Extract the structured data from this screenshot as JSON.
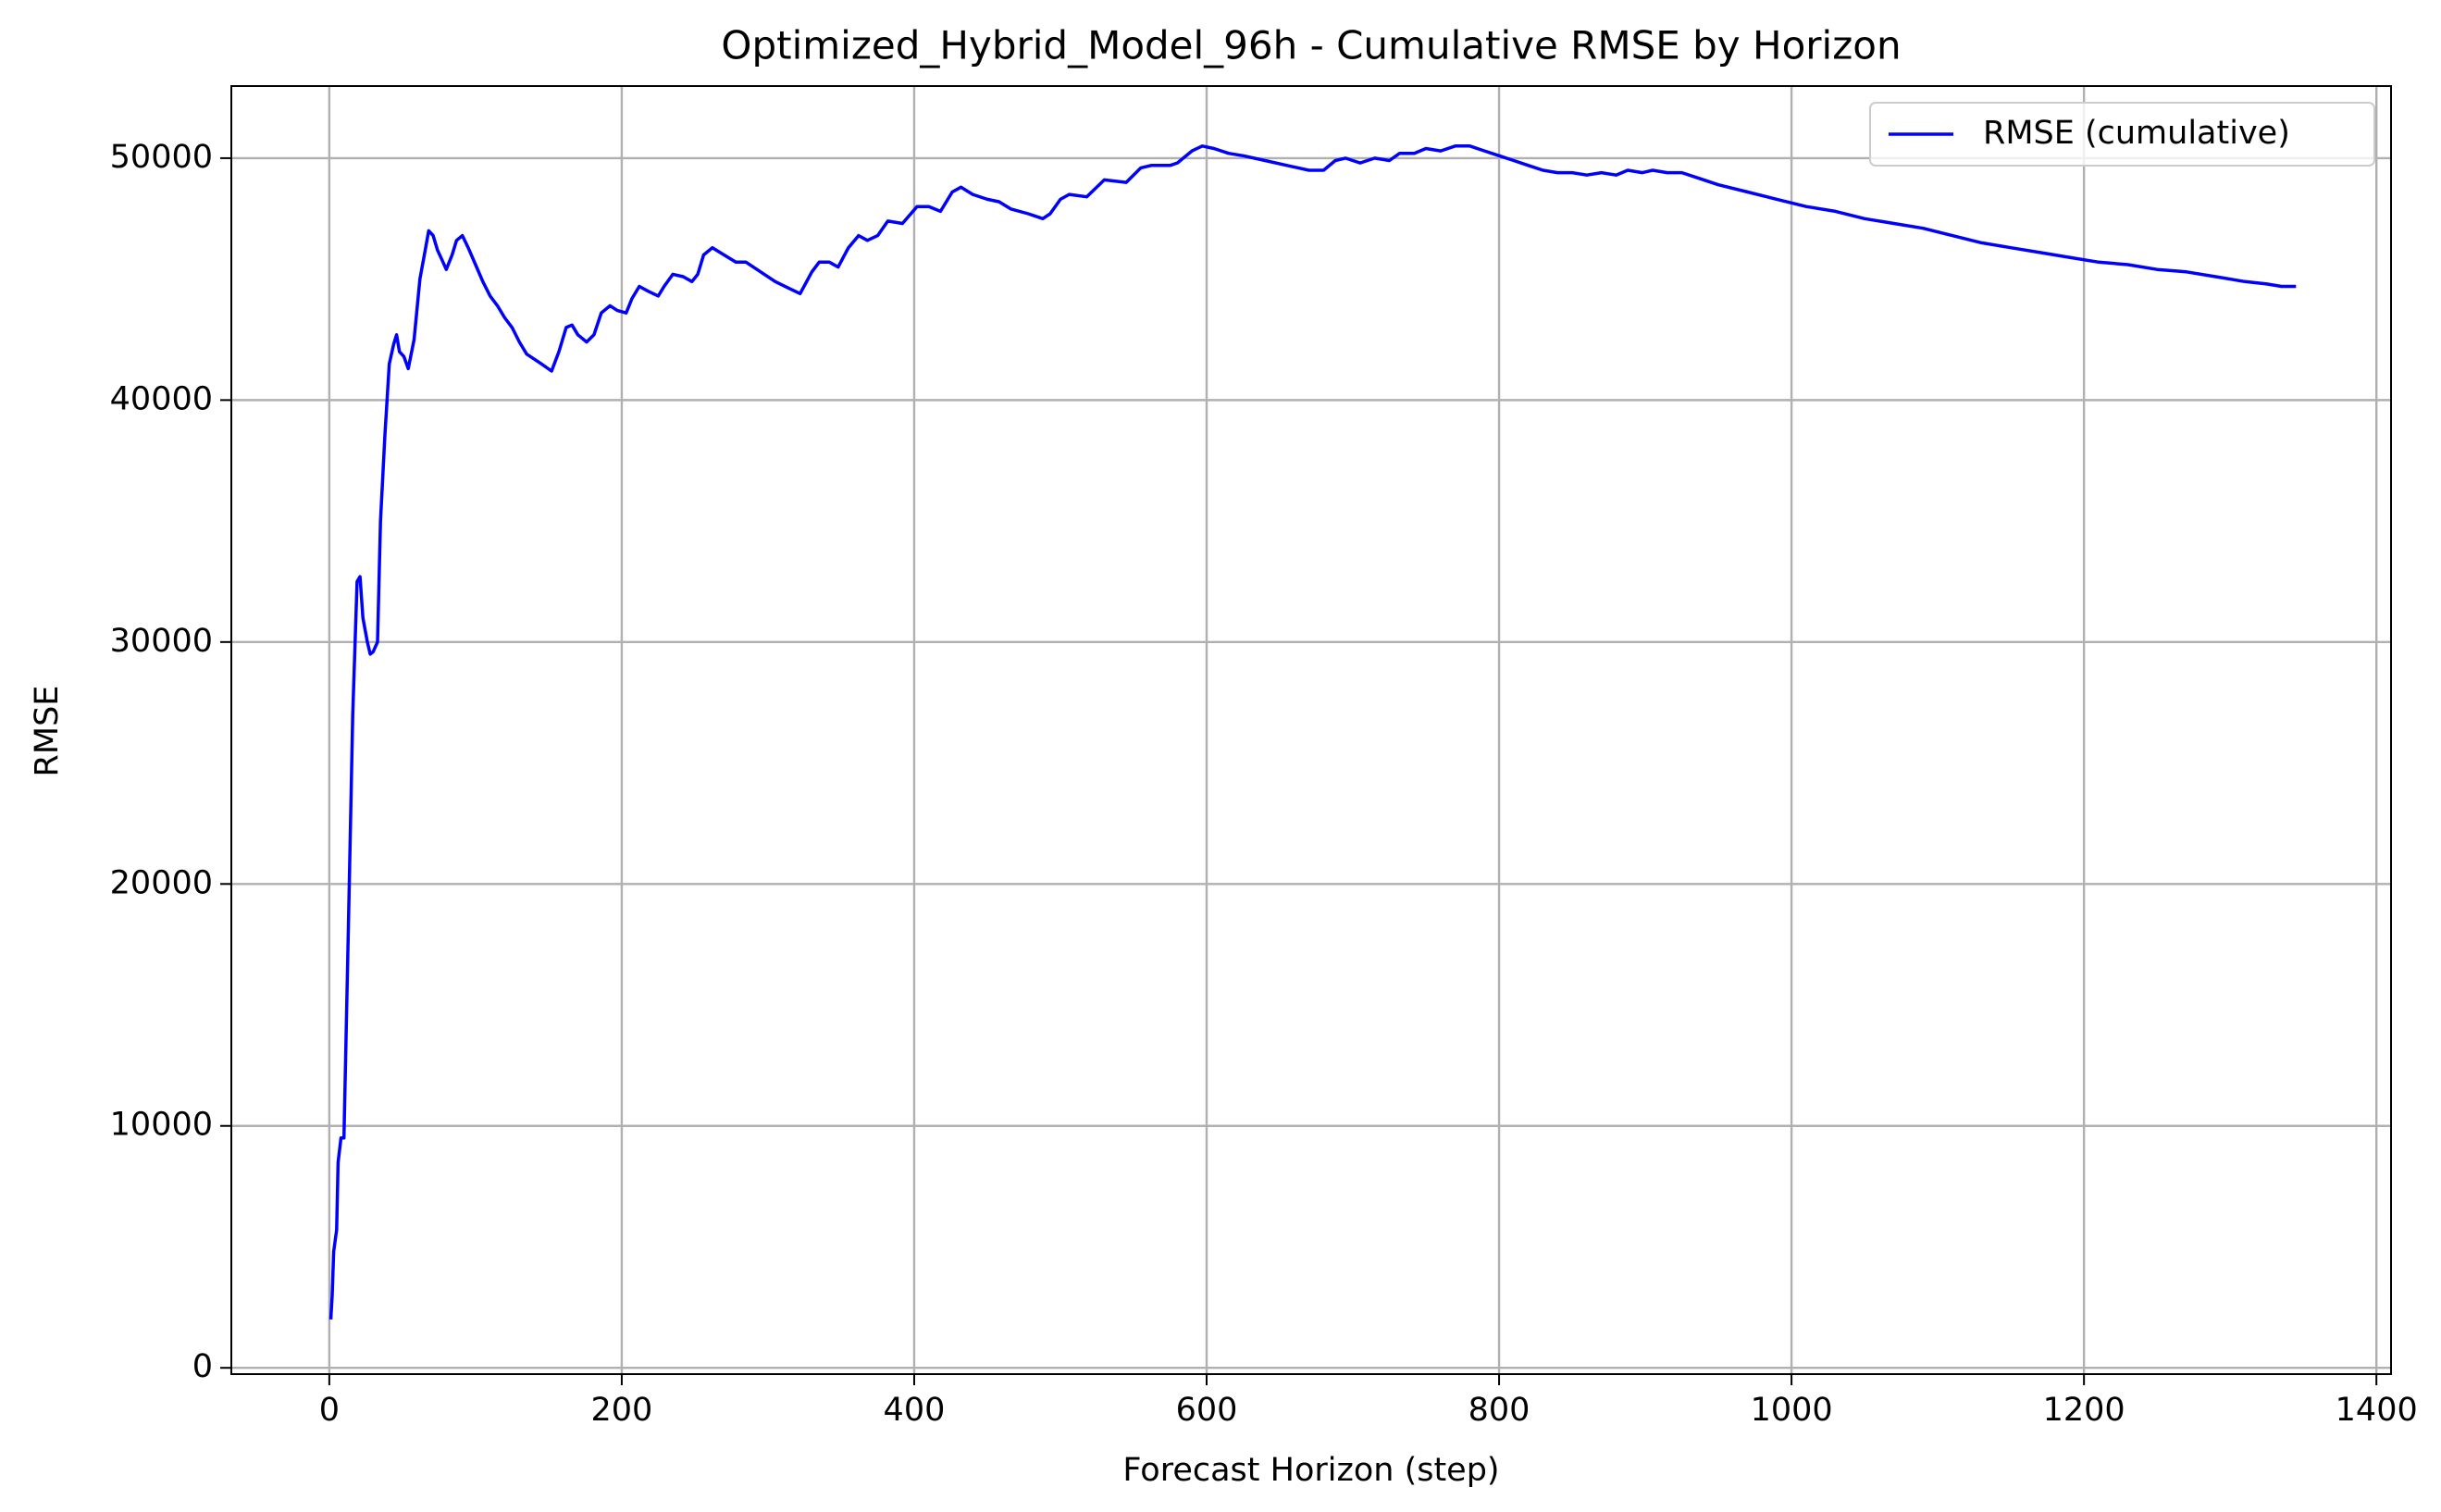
{
  "chart_data": {
    "type": "line",
    "title": "Optimized_Hybrid_Model_96h - Cumulative RMSE by Horizon",
    "xlabel": "Forecast Horizon (step)",
    "ylabel": "RMSE",
    "xlim": [
      -67,
      1410
    ],
    "ylim": [
      -260,
      52980
    ],
    "xticks": [
      0,
      200,
      400,
      600,
      800,
      1000,
      1200,
      1400
    ],
    "yticks": [
      0,
      10000,
      20000,
      30000,
      40000,
      50000
    ],
    "grid": true,
    "legend": "upper right",
    "x": [
      1,
      2,
      3,
      5,
      6,
      8,
      10,
      13,
      16,
      19,
      21,
      23,
      26,
      28,
      30,
      33,
      35,
      38,
      41,
      44,
      46,
      48,
      51,
      54,
      58,
      62,
      65,
      68,
      71,
      74,
      77,
      80,
      84,
      87,
      91,
      95,
      100,
      105,
      110,
      115,
      120,
      125,
      130,
      135,
      140,
      145,
      152,
      157,
      162,
      166,
      170,
      176,
      181,
      186,
      192,
      197,
      203,
      207,
      212,
      218,
      225,
      229,
      235,
      242,
      248,
      252,
      256,
      262,
      270,
      278,
      285,
      295,
      305,
      315,
      322,
      330,
      335,
      342,
      348,
      355,
      362,
      368,
      375,
      382,
      392,
      402,
      410,
      418,
      426,
      432,
      440,
      450,
      458,
      466,
      478,
      488,
      493,
      500,
      506,
      518,
      530,
      545,
      555,
      562,
      575,
      580,
      590,
      597,
      605,
      615,
      625,
      640,
      655,
      670,
      680,
      688,
      695,
      705,
      715,
      725,
      732,
      742,
      750,
      760,
      770,
      780,
      790,
      800,
      810,
      820,
      830,
      840,
      850,
      860,
      870,
      880,
      888,
      898,
      905,
      915,
      925,
      935,
      950,
      970,
      990,
      1010,
      1030,
      1050,
      1070,
      1090,
      1110,
      1130,
      1150,
      1170,
      1190,
      1210,
      1230,
      1250,
      1270,
      1290,
      1310,
      1325,
      1335,
      1345
    ],
    "series": [
      {
        "name": "RMSE (cumulative)",
        "color": "#0000ff",
        "values": [
          2000,
          3000,
          4800,
          5700,
          8500,
          9500,
          9500,
          18000,
          27000,
          32500,
          32700,
          31000,
          30000,
          29500,
          29600,
          30000,
          35000,
          38500,
          41500,
          42300,
          42700,
          42000,
          41800,
          41300,
          42500,
          45000,
          46000,
          47000,
          46800,
          46200,
          45800,
          45400,
          46000,
          46600,
          46800,
          46300,
          45600,
          44900,
          44300,
          43900,
          43400,
          43000,
          42400,
          41900,
          41700,
          41500,
          41200,
          42000,
          43000,
          43100,
          42700,
          42400,
          42700,
          43600,
          43900,
          43700,
          43600,
          44200,
          44700,
          44500,
          44300,
          44700,
          45200,
          45100,
          44900,
          45200,
          46000,
          46300,
          46000,
          45700,
          45700,
          45300,
          44900,
          44600,
          44400,
          45300,
          45700,
          45700,
          45500,
          46300,
          46800,
          46600,
          46800,
          47400,
          47300,
          48000,
          48000,
          47800,
          48600,
          48800,
          48500,
          48300,
          48200,
          47900,
          47700,
          47500,
          47700,
          48300,
          48500,
          48400,
          49100,
          49000,
          49600,
          49700,
          49700,
          49800,
          50300,
          50500,
          50400,
          50200,
          50100,
          49900,
          49700,
          49500,
          49500,
          49900,
          50000,
          49800,
          50000,
          49900,
          50200,
          50200,
          50400,
          50300,
          50500,
          50500,
          50300,
          50100,
          49900,
          49700,
          49500,
          49400,
          49400,
          49300,
          49400,
          49300,
          49500,
          49400,
          49500,
          49400,
          49400,
          49200,
          48900,
          48600,
          48300,
          48000,
          47800,
          47500,
          47300,
          47100,
          46800,
          46500,
          46300,
          46100,
          45900,
          45700,
          45600,
          45400,
          45300,
          45100,
          44900,
          44800,
          44700,
          44700
        ]
      }
    ]
  }
}
